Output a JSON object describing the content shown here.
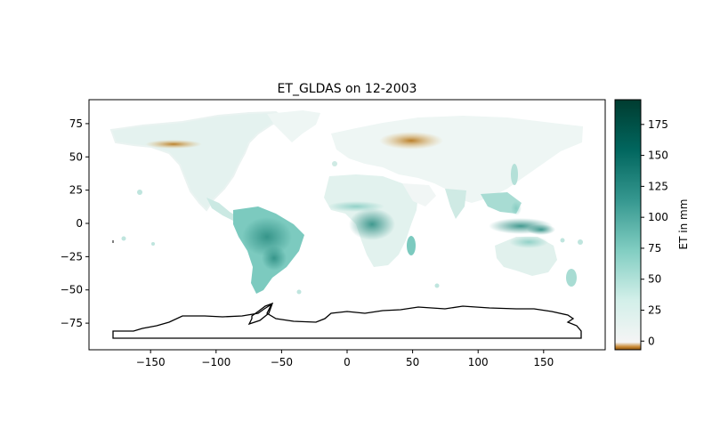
{
  "title": "ET_GLDAS on 12-2003",
  "chart_data": {
    "type": "heatmap",
    "title": "ET_GLDAS on 12-2003",
    "xlabel": "",
    "ylabel": "",
    "xlim": [
      -197,
      197
    ],
    "ylim": [
      -95,
      93
    ],
    "x_ticks": [
      -150,
      -100,
      -50,
      0,
      50,
      100,
      150
    ],
    "y_ticks": [
      75,
      50,
      25,
      0,
      -25,
      -50,
      -75
    ],
    "colorbar": {
      "label": "ET in mm",
      "range": [
        -7,
        195
      ],
      "ticks": [
        0,
        25,
        50,
        75,
        100,
        125,
        150,
        175
      ],
      "colormap": "BrBG",
      "colors": {
        "negative": "#8c5109",
        "zero": "#f5f5f5",
        "low": "#d2efe9",
        "mid": "#80cdc1",
        "high": "#35978f",
        "max": "#01665e",
        "extreme": "#003c30"
      }
    },
    "grid": false
  }
}
